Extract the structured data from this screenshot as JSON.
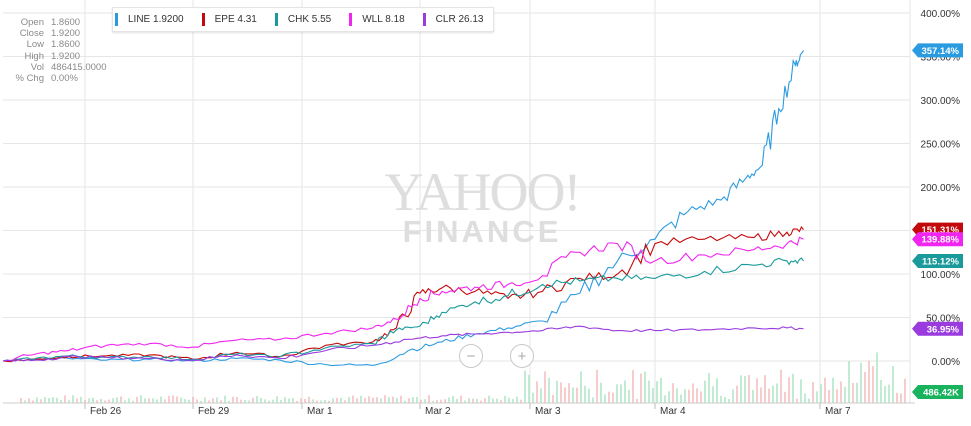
{
  "ohlc_panel": {
    "rows": [
      {
        "label": "Open",
        "value": "1.8600"
      },
      {
        "label": "Close",
        "value": "1.9200"
      },
      {
        "label": "Low",
        "value": "1.8600"
      },
      {
        "label": "High",
        "value": "1.9200"
      },
      {
        "label": "Vol",
        "value": "486415.0000"
      },
      {
        "label": "% Chg",
        "value": "0.00%"
      }
    ]
  },
  "legend": [
    {
      "label": "LINE 1.9200",
      "color": "#2b9be0"
    },
    {
      "label": "EPE 4.31",
      "color": "#c4090c"
    },
    {
      "label": "CHK 5.55",
      "color": "#1a9a9a"
    },
    {
      "label": "WLL 8.18",
      "color": "#f026f0"
    },
    {
      "label": "CLR 26.13",
      "color": "#9a3be0"
    }
  ],
  "watermark": {
    "line1": "YAHOO!",
    "line2": "FINANCE"
  },
  "zoom": {
    "out_icon": "zoom-out-icon",
    "in_icon": "zoom-in-icon"
  },
  "chart_data": {
    "type": "line",
    "ylabel_format": "percent",
    "y_ticks": [
      "400.00%",
      "350.00%",
      "300.00%",
      "250.00%",
      "200.00%",
      "150.00%",
      "100.00%",
      "50.00%",
      "0.00%"
    ],
    "ylim": [
      -50,
      400
    ],
    "x_ticks": [
      "Feb 26",
      "Feb 29",
      "Mar 1",
      "Mar 2",
      "Mar 3",
      "Mar 4",
      "Mar 7"
    ],
    "x_range": [
      0,
      7
    ],
    "grid": true,
    "series": [
      {
        "name": "LINE",
        "color": "#2b9be0",
        "end_label": "357.14%",
        "x": [
          0,
          0.4,
          0.8,
          1.2,
          1.6,
          2.0,
          2.4,
          2.8,
          3.2,
          3.6,
          3.9,
          4.2,
          4.5,
          4.8,
          5.1,
          5.4,
          5.7,
          6.0,
          6.2,
          6.4,
          6.55,
          6.65,
          6.75,
          6.85,
          6.9
        ],
        "y": [
          0,
          2,
          3,
          1,
          2,
          0,
          3,
          1,
          -4,
          -5,
          12,
          22,
          31,
          38,
          46,
          78,
          115,
          140,
          172,
          185,
          210,
          225,
          290,
          340,
          357
        ]
      },
      {
        "name": "EPE",
        "color": "#c4090c",
        "end_label": "151.31%",
        "x": [
          0,
          0.4,
          0.8,
          1.2,
          1.6,
          2.0,
          2.4,
          2.8,
          3.2,
          3.6,
          3.8,
          4.0,
          4.2,
          4.5,
          4.8,
          5.1,
          5.4,
          5.7,
          6.0,
          6.3,
          6.6,
          6.8,
          6.9
        ],
        "y": [
          0,
          2,
          5,
          6,
          7,
          2,
          10,
          5,
          18,
          22,
          38,
          78,
          84,
          80,
          72,
          80,
          95,
          100,
          135,
          140,
          142,
          148,
          151
        ]
      },
      {
        "name": "CHK",
        "color": "#1a9a9a",
        "end_label": "115.12%",
        "x": [
          0,
          0.4,
          0.8,
          1.2,
          1.6,
          2.0,
          2.4,
          2.8,
          3.2,
          3.6,
          3.8,
          4.0,
          4.2,
          4.5,
          4.8,
          5.1,
          5.4,
          5.7,
          6.0,
          6.3,
          6.6,
          6.8,
          6.9
        ],
        "y": [
          0,
          3,
          6,
          4,
          5,
          2,
          8,
          5,
          15,
          20,
          36,
          40,
          56,
          68,
          75,
          88,
          92,
          95,
          95,
          103,
          110,
          115,
          115
        ]
      },
      {
        "name": "WLL",
        "color": "#f026f0",
        "end_label": "139.88%",
        "x": [
          0,
          0.4,
          0.8,
          1.2,
          1.6,
          2.0,
          2.4,
          2.8,
          3.2,
          3.6,
          3.8,
          4.0,
          4.2,
          4.5,
          4.8,
          5.1,
          5.4,
          5.7,
          6.0,
          6.3,
          6.6,
          6.8,
          6.9
        ],
        "y": [
          0,
          8,
          12,
          18,
          20,
          16,
          24,
          25,
          32,
          38,
          48,
          72,
          80,
          85,
          88,
          98,
          125,
          135,
          115,
          122,
          128,
          135,
          140
        ]
      },
      {
        "name": "CLR",
        "color": "#9a3be0",
        "end_label": "36.95%",
        "x": [
          0,
          0.4,
          0.8,
          1.2,
          1.6,
          2.0,
          2.4,
          2.8,
          3.2,
          3.6,
          3.9,
          4.2,
          4.5,
          4.8,
          5.1,
          5.4,
          5.7,
          6.0,
          6.3,
          6.6,
          6.8,
          6.9
        ],
        "y": [
          0,
          1,
          5,
          4,
          3,
          1,
          7,
          3,
          12,
          18,
          25,
          29,
          31,
          33,
          35,
          40,
          35,
          35,
          36,
          38,
          38,
          37
        ]
      }
    ],
    "volume_label": "486.42K",
    "volume_label_color": "#19b35d"
  }
}
